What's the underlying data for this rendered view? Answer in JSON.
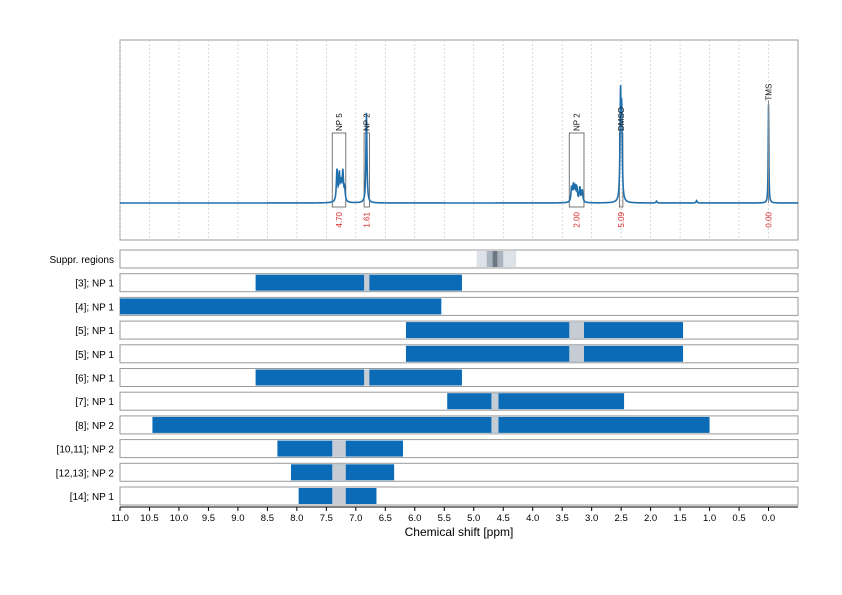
{
  "chart_data": {
    "type": "line",
    "xlabel": "Chemical shift [ppm]",
    "xlim": [
      11.0,
      -0.5
    ],
    "x_reversed": true,
    "x_ticks": [
      "11.0",
      "10.5",
      "10.0",
      "9.5",
      "9.0",
      "8.5",
      "8.0",
      "7.5",
      "7.0",
      "6.5",
      "6.0",
      "5.5",
      "5.0",
      "4.5",
      "4.0",
      "3.5",
      "3.0",
      "2.5",
      "2.0",
      "1.5",
      "1.0",
      "0.5",
      "0.0"
    ],
    "vgrid": true,
    "colors": {
      "spectrum": "#1f6fad",
      "bar": "#0b6bb6",
      "gap": "#c5ccd3",
      "integral": "#d62728",
      "frame": "#9a9a9a"
    },
    "spectrum_peaks": [
      {
        "x": 7.32,
        "h": 0.26,
        "w": 0.012
      },
      {
        "x": 7.28,
        "h": 0.22,
        "w": 0.012
      },
      {
        "x": 7.25,
        "h": 0.14,
        "w": 0.012
      },
      {
        "x": 7.22,
        "h": 0.24,
        "w": 0.012
      },
      {
        "x": 7.19,
        "h": 0.1,
        "w": 0.012
      },
      {
        "x": 6.82,
        "h": 0.75,
        "w": 0.01
      },
      {
        "x": 3.34,
        "h": 0.12,
        "w": 0.012
      },
      {
        "x": 3.31,
        "h": 0.13,
        "w": 0.012
      },
      {
        "x": 3.28,
        "h": 0.12,
        "w": 0.012
      },
      {
        "x": 3.25,
        "h": 0.11,
        "w": 0.012
      },
      {
        "x": 3.2,
        "h": 0.12,
        "w": 0.012
      },
      {
        "x": 3.16,
        "h": 0.1,
        "w": 0.012
      },
      {
        "x": 2.51,
        "h": 0.85,
        "w": 0.01
      },
      {
        "x": 2.49,
        "h": 0.7,
        "w": 0.01
      },
      {
        "x": 1.9,
        "h": 0.015,
        "w": 0.01
      },
      {
        "x": 1.22,
        "h": 0.02,
        "w": 0.01
      },
      {
        "x": 0.0,
        "h": 0.82,
        "w": 0.006
      }
    ],
    "annotations": [
      {
        "label": "NP 5",
        "from": 7.4,
        "to": 7.17,
        "box_top": 0.55,
        "integral": "4.70",
        "color": "#d62728"
      },
      {
        "label": "NP 2",
        "from": 6.86,
        "to": 6.77,
        "box_top": 0.55,
        "integral": "1.61",
        "color": "#d62728"
      },
      {
        "label": "NP 2",
        "from": 3.38,
        "to": 3.13,
        "box_top": 0.55,
        "integral": "2.00",
        "color": "#d62728"
      },
      {
        "label": "DMSO",
        "from": 2.53,
        "to": 2.47,
        "box_top": 0.55,
        "integral": "5.09",
        "color": "#d62728"
      },
      {
        "label": "TMS",
        "from": 0.03,
        "to": -0.03,
        "box_top": 0.0,
        "integral": "0.00",
        "color": "#d62728"
      }
    ],
    "rows": [
      {
        "label": "Suppr. regions",
        "type": "suppression",
        "outer": [
          4.95,
          4.28
        ],
        "inner": [
          4.78,
          4.5
        ],
        "core": [
          4.68,
          4.6
        ]
      },
      {
        "label": "[3]; NP 1",
        "from": 8.7,
        "to": 5.2,
        "gap": [
          6.86,
          6.77
        ]
      },
      {
        "label": "[4]; NP 1",
        "from": 11.0,
        "to": 5.55,
        "gap": null
      },
      {
        "label": "[5]; NP 1",
        "from": 6.15,
        "to": 1.45,
        "gap": [
          3.38,
          3.13
        ]
      },
      {
        "label": "[5]; NP 1",
        "from": 6.15,
        "to": 1.45,
        "gap": [
          3.38,
          3.13
        ]
      },
      {
        "label": "[6]; NP 1",
        "from": 8.7,
        "to": 5.2,
        "gap": [
          6.86,
          6.77
        ]
      },
      {
        "label": "[7]; NP 1",
        "from": 5.45,
        "to": 2.45,
        "gap": [
          4.7,
          4.58
        ]
      },
      {
        "label": "[8]; NP 2",
        "from": 10.45,
        "to": 1.0,
        "gap": [
          4.7,
          4.58
        ]
      },
      {
        "label": "[10,11]; NP 2",
        "from": 8.33,
        "to": 6.2,
        "gap": [
          7.4,
          7.17
        ]
      },
      {
        "label": "[12,13]; NP 2",
        "from": 8.1,
        "to": 6.35,
        "gap": [
          7.4,
          7.17
        ]
      },
      {
        "label": "[14]; NP 1",
        "from": 7.97,
        "to": 6.65,
        "gap": [
          7.4,
          7.17
        ]
      }
    ]
  }
}
